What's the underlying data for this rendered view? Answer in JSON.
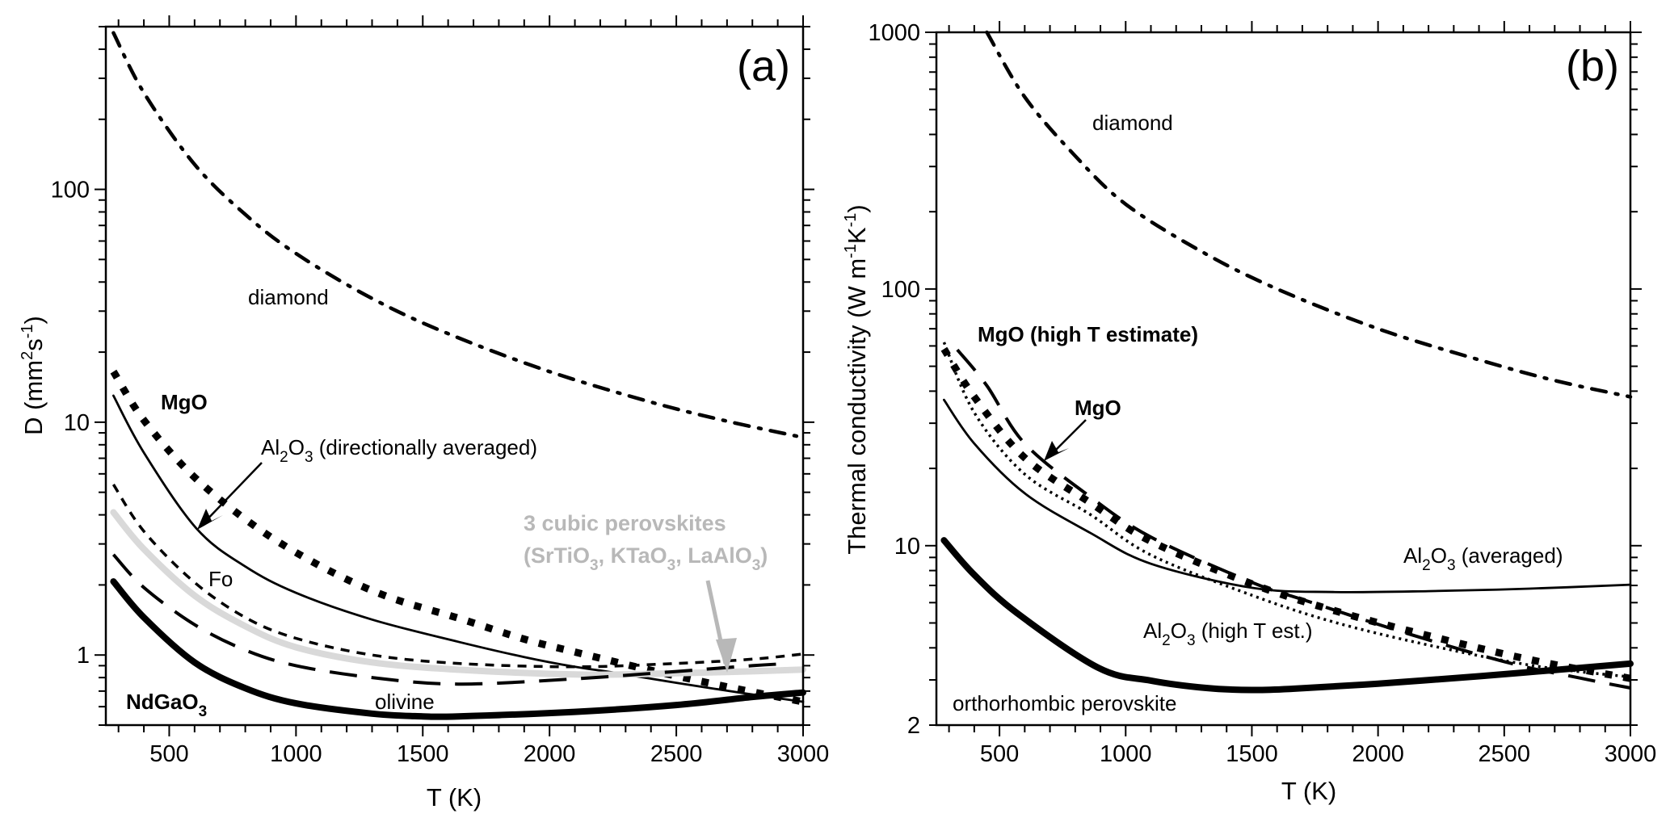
{
  "chart_data": [
    {
      "id": "a",
      "type": "line",
      "panel_label": "(a)",
      "title": "",
      "xlabel": "T (K)",
      "ylabel": "D (mm²s⁻¹)",
      "ylabel_parts": {
        "base": "D (mm",
        "sup1": "2",
        "mid": "s",
        "sup2": "-1",
        "end": ")"
      },
      "xscale": "linear",
      "yscale": "log",
      "xlim": [
        250,
        3000
      ],
      "ylim": [
        0.5,
        500
      ],
      "xticks": [
        500,
        1000,
        1500,
        2000,
        2500,
        3000
      ],
      "xtick_labels": [
        "500",
        "1000",
        "1500",
        "2000",
        "2500",
        "3000"
      ],
      "yticks": [
        1,
        10,
        100
      ],
      "ytick_labels": [
        "1",
        "10",
        "100"
      ],
      "grid": false,
      "series": [
        {
          "name": "diamond",
          "style": "dashdot",
          "color": "#000000",
          "x": [
            280,
            400,
            600,
            800,
            1000,
            1300,
            1600,
            2000,
            2400,
            2700,
            3000
          ],
          "y": [
            470,
            260,
            128,
            78,
            53,
            34,
            24,
            16.5,
            12.2,
            10.1,
            8.6
          ]
        },
        {
          "name": "MgO",
          "style": "squares",
          "color": "#000000",
          "x": [
            280,
            400,
            600,
            850,
            1100,
            1350,
            1640,
            1900,
            2100,
            2400,
            2700,
            3000
          ],
          "y": [
            16.5,
            10.2,
            5.8,
            3.5,
            2.4,
            1.8,
            1.44,
            1.17,
            1.03,
            0.86,
            0.73,
            0.63
          ]
        },
        {
          "name": "Al2O3 (directionally averaged)",
          "style": "solid",
          "color": "#000000",
          "x": [
            280,
            400,
            607,
            800,
            1000,
            1300,
            1640,
            1900,
            2100,
            2255,
            2500,
            2750,
            3000
          ],
          "y": [
            13,
            7.4,
            3.5,
            2.4,
            1.85,
            1.42,
            1.14,
            0.98,
            0.89,
            0.84,
            0.76,
            0.69,
            0.63
          ]
        },
        {
          "name": "Fo",
          "style": "dashed",
          "color": "#000000",
          "x": [
            280,
            400,
            600,
            800,
            1000,
            1300,
            1640,
            2100,
            2500,
            2800,
            3000
          ],
          "y": [
            5.4,
            3.4,
            2.05,
            1.45,
            1.18,
            1.0,
            0.92,
            0.89,
            0.92,
            0.96,
            1.01
          ]
        },
        {
          "name": "3 cubic perovskites (SrTiO3, KTaO3, LaAlO3)",
          "style": "thick-gray",
          "color": "#d9d9d9",
          "x": [
            280,
            400,
            600,
            800,
            1000,
            1300,
            1640,
            2100,
            2400,
            2700,
            3000
          ],
          "y": [
            4.1,
            2.85,
            1.8,
            1.33,
            1.08,
            0.93,
            0.865,
            0.825,
            0.83,
            0.845,
            0.866
          ]
        },
        {
          "name": "olivine",
          "style": "longdash",
          "color": "#000000",
          "x": [
            280,
            400,
            600,
            800,
            1000,
            1300,
            1640,
            2100,
            2500,
            2800,
            2950
          ],
          "y": [
            2.7,
            1.95,
            1.35,
            1.05,
            0.9,
            0.8,
            0.75,
            0.79,
            0.85,
            0.9,
            0.92
          ]
        },
        {
          "name": "NdGaO3",
          "style": "thick-solid",
          "color": "#000000",
          "x": [
            280,
            400,
            600,
            800,
            1000,
            1300,
            1500,
            1640,
            2100,
            2500,
            2800,
            3000
          ],
          "y": [
            2.07,
            1.45,
            0.93,
            0.72,
            0.62,
            0.56,
            0.545,
            0.545,
            0.57,
            0.61,
            0.66,
            0.69
          ]
        }
      ],
      "annotations": [
        {
          "text": "diamond",
          "bold": false,
          "gray": false
        },
        {
          "text": "MgO",
          "bold": true,
          "gray": false
        },
        {
          "text": "Al2O3 (directionally averaged)",
          "bold": false,
          "gray": false,
          "arrow_to": [
            607,
            3.5
          ]
        },
        {
          "text": "Fo",
          "bold": false,
          "gray": false
        },
        {
          "text": "3 cubic perovskites",
          "bold": true,
          "gray": true
        },
        {
          "text": "(SrTiO3, KTaO3, LaAlO3)",
          "bold": true,
          "gray": true,
          "arrow_to": [
            2700,
            0.85
          ]
        },
        {
          "text": "NdGaO3",
          "bold": true,
          "gray": false
        },
        {
          "text": "olivine",
          "bold": false,
          "gray": false
        }
      ]
    },
    {
      "id": "b",
      "type": "line",
      "panel_label": "(b)",
      "title": "",
      "xlabel": "T (K)",
      "ylabel": "Thermal conductivity (W m⁻¹K⁻¹)",
      "ylabel_parts": {
        "base": "Thermal conductivity (W m",
        "sup1": "-1",
        "mid": "K",
        "sup2": "-1",
        "end": ")"
      },
      "xscale": "linear",
      "yscale": "log",
      "xlim": [
        250,
        3000
      ],
      "ylim": [
        2,
        1000
      ],
      "xticks": [
        500,
        1000,
        1500,
        2000,
        2500,
        3000
      ],
      "xtick_labels": [
        "500",
        "1000",
        "1500",
        "2000",
        "2500",
        "3000"
      ],
      "yticks": [
        2,
        10,
        100,
        1000
      ],
      "ytick_labels": [
        "2",
        "10",
        "100",
        "1000"
      ],
      "grid": false,
      "series": [
        {
          "name": "diamond",
          "style": "dashdot",
          "color": "#000000",
          "x": [
            450,
            600,
            800,
            1000,
            1300,
            1600,
            2000,
            2400,
            2700,
            3000
          ],
          "y": [
            1000,
            560,
            330,
            214,
            140,
            100,
            70,
            53,
            44,
            38
          ]
        },
        {
          "name": "MgO",
          "style": "squares",
          "color": "#000000",
          "x": [
            280,
            400,
            600,
            860,
            1100,
            1500,
            1822,
            2196,
            2600,
            3000
          ],
          "y": [
            58.4,
            38,
            22,
            14.7,
            10.4,
            7.1,
            5.6,
            4.47,
            3.6,
            3.04
          ]
        },
        {
          "name": "MgO (high T estimate)",
          "style": "longdash",
          "color": "#000000",
          "x": [
            333,
            450,
            600,
            860,
            1100,
            1500,
            1716,
            2100,
            2516,
            2800,
            3000
          ],
          "y": [
            58,
            42,
            25,
            15.5,
            10.8,
            7.2,
            6.1,
            4.6,
            3.5,
            3.05,
            2.79
          ]
        },
        {
          "name": "Al2O3 (averaged)",
          "style": "solid",
          "color": "#000000",
          "x": [
            280,
            400,
            600,
            861,
            1100,
            1502,
            1822,
            2200,
            2600,
            3000
          ],
          "y": [
            37,
            25,
            16,
            11.2,
            8.5,
            6.85,
            6.6,
            6.65,
            6.8,
            7.05
          ]
        },
        {
          "name": "Al2O3 (high T est.)",
          "style": "dotted",
          "color": "#000000",
          "x": [
            280,
            400,
            600,
            861,
            1100,
            1502,
            1822,
            2200,
            2622,
            3000
          ],
          "y": [
            62,
            33,
            19,
            13.2,
            9.2,
            6.4,
            5.05,
            4.1,
            3.4,
            3.08
          ]
        },
        {
          "name": "orthorhombic perovskite",
          "style": "thick-solid",
          "color": "#000000",
          "x": [
            280,
            400,
            573,
            893,
            1100,
            1319,
            1500,
            1662,
            2000,
            2400,
            2686,
            3000
          ],
          "y": [
            10.5,
            7.7,
            5.43,
            3.34,
            2.98,
            2.79,
            2.74,
            2.77,
            2.9,
            3.1,
            3.27,
            3.47
          ]
        }
      ],
      "annotations": [
        {
          "text": "diamond",
          "bold": false,
          "gray": false
        },
        {
          "text": "MgO (high T estimate)",
          "bold": true,
          "gray": false
        },
        {
          "text": "MgO",
          "bold": true,
          "gray": false,
          "arrow_to": [
            680,
            21
          ]
        },
        {
          "text": "Al2O3 (averaged)",
          "bold": false,
          "gray": false
        },
        {
          "text": "Al2O3 (high T est.)",
          "bold": false,
          "gray": false
        },
        {
          "text": "orthorhombic perovskite",
          "bold": false,
          "gray": false
        }
      ]
    }
  ]
}
